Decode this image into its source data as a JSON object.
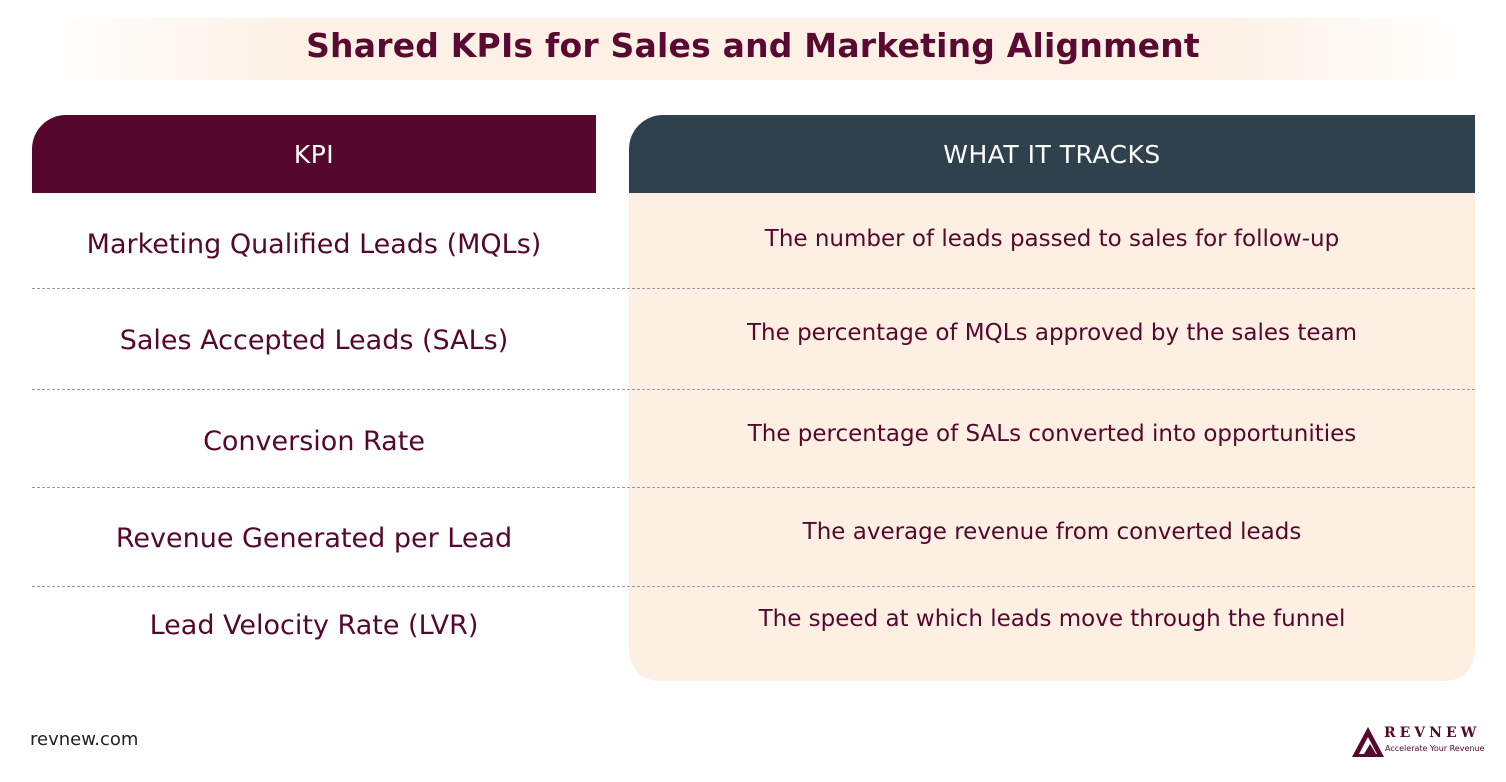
{
  "title": "Shared KPIs for Sales and Marketing Alignment",
  "table": {
    "headers": {
      "kpi": "KPI",
      "tracks": "WHAT IT TRACKS"
    },
    "rows": [
      {
        "kpi": "Marketing Qualified Leads (MQLs)",
        "tracks": "The number of leads passed to sales for follow-up"
      },
      {
        "kpi": "Sales Accepted Leads (SALs)",
        "tracks": "The percentage of MQLs approved by the sales team"
      },
      {
        "kpi": "Conversion Rate",
        "tracks": "The percentage of SALs converted into opportunities"
      },
      {
        "kpi": "Revenue Generated per Lead",
        "tracks": "The average revenue from converted leads"
      },
      {
        "kpi": "Lead Velocity Rate (LVR)",
        "tracks": "The speed at which leads move through the funnel"
      }
    ]
  },
  "footer": {
    "url": "revnew.com",
    "logo_name": "REVNEW",
    "logo_tagline": "Accelerate Your Revenue",
    "logo_icon": "mountain-triangle-icon"
  },
  "colors": {
    "brand_maroon": "#55072d",
    "header_slate": "#2e414c",
    "panel_cream": "#fdf0e3"
  }
}
